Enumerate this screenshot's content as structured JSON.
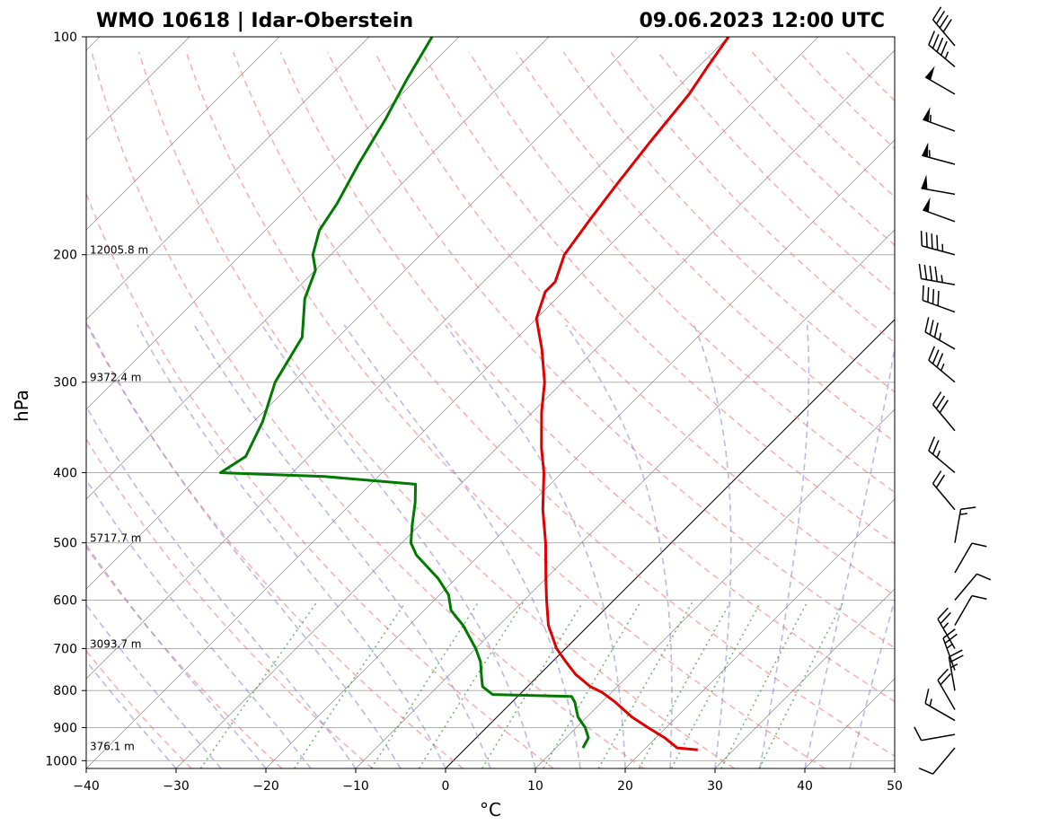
{
  "header": {
    "title_left": "WMO 10618 | Idar-Oberstein",
    "title_right": "09.06.2023 12:00 UTC"
  },
  "chart_data": {
    "type": "skew-t",
    "title": "WMO 10618 | Idar-Oberstein",
    "subtitle": "09.06.2023 12:00 UTC",
    "xlabel": "°C",
    "ylabel": "hPa",
    "xlim": [
      -40,
      50
    ],
    "ylim": [
      1025,
      100
    ],
    "y_scale": "log",
    "x_ticks": [
      -40,
      -30,
      -20,
      -10,
      0,
      10,
      20,
      30,
      40,
      50
    ],
    "y_ticks": [
      100,
      200,
      300,
      400,
      500,
      600,
      700,
      800,
      900,
      1000
    ],
    "grid": true,
    "height_labels": [
      {
        "p": 200,
        "text": "12005.8 m"
      },
      {
        "p": 300,
        "text": "9372.4 m"
      },
      {
        "p": 500,
        "text": "5717.7 m"
      },
      {
        "p": 700,
        "text": "3093.7 m"
      },
      {
        "p": 970,
        "text": "376.1 m"
      }
    ],
    "background_lines": [
      "isotherms (gray, solid)",
      "dry adiabats (red, dashed)",
      "moist adiabats (blue, dashed)",
      "mixing ratio lines (green, dotted)"
    ],
    "zero_isotherm_highlight": true,
    "series": [
      {
        "color": "#e00000",
        "points": [
          [
            966,
            26
          ],
          [
            960,
            23.5
          ],
          [
            930,
            21
          ],
          [
            900,
            18
          ],
          [
            870,
            15
          ],
          [
            830,
            11.5
          ],
          [
            805,
            9
          ],
          [
            790,
            7
          ],
          [
            760,
            4
          ],
          [
            730,
            1.5
          ],
          [
            700,
            -1
          ],
          [
            650,
            -4.5
          ],
          [
            600,
            -7.5
          ],
          [
            560,
            -10
          ],
          [
            500,
            -14
          ],
          [
            450,
            -18
          ],
          [
            400,
            -22
          ],
          [
            370,
            -25
          ],
          [
            330,
            -29
          ],
          [
            300,
            -32
          ],
          [
            270,
            -36
          ],
          [
            245,
            -40
          ],
          [
            225,
            -42
          ],
          [
            218,
            -42
          ],
          [
            200,
            -44
          ],
          [
            180,
            -45
          ],
          [
            160,
            -46
          ],
          [
            140,
            -47
          ],
          [
            120,
            -48
          ],
          [
            110,
            -49
          ],
          [
            100,
            -50
          ]
        ]
      },
      {
        "color": "#007a00",
        "points": [
          [
            960,
            13
          ],
          [
            930,
            12.5
          ],
          [
            900,
            11
          ],
          [
            870,
            9
          ],
          [
            830,
            7
          ],
          [
            815,
            6
          ],
          [
            810,
            -3
          ],
          [
            790,
            -5
          ],
          [
            770,
            -6
          ],
          [
            730,
            -8
          ],
          [
            700,
            -10
          ],
          [
            650,
            -14
          ],
          [
            620,
            -17
          ],
          [
            590,
            -19
          ],
          [
            560,
            -22
          ],
          [
            520,
            -27
          ],
          [
            500,
            -29
          ],
          [
            470,
            -31
          ],
          [
            440,
            -33
          ],
          [
            415,
            -35
          ],
          [
            405,
            -46
          ],
          [
            400,
            -58
          ],
          [
            380,
            -57
          ],
          [
            340,
            -59
          ],
          [
            300,
            -62
          ],
          [
            260,
            -64
          ],
          [
            230,
            -68
          ],
          [
            210,
            -70
          ],
          [
            200,
            -72
          ],
          [
            185,
            -74
          ],
          [
            170,
            -75
          ],
          [
            150,
            -77
          ],
          [
            130,
            -79
          ],
          [
            115,
            -81
          ],
          [
            100,
            -83
          ]
        ]
      }
    ],
    "wind_barbs": [
      {
        "p": 960,
        "dir": 220,
        "kt": 10
      },
      {
        "p": 920,
        "dir": 260,
        "kt": 10
      },
      {
        "p": 880,
        "dir": 300,
        "kt": 15
      },
      {
        "p": 850,
        "dir": 330,
        "kt": 20
      },
      {
        "p": 800,
        "dir": 350,
        "kt": 25
      },
      {
        "p": 750,
        "dir": 340,
        "kt": 25
      },
      {
        "p": 700,
        "dir": 330,
        "kt": 25
      },
      {
        "p": 650,
        "dir": 30,
        "kt": 10
      },
      {
        "p": 600,
        "dir": 40,
        "kt": 10
      },
      {
        "p": 550,
        "dir": 30,
        "kt": 10
      },
      {
        "p": 500,
        "dir": 10,
        "kt": 15
      },
      {
        "p": 450,
        "dir": 320,
        "kt": 20
      },
      {
        "p": 400,
        "dir": 310,
        "kt": 25
      },
      {
        "p": 350,
        "dir": 320,
        "kt": 30
      },
      {
        "p": 300,
        "dir": 310,
        "kt": 35
      },
      {
        "p": 270,
        "dir": 300,
        "kt": 35
      },
      {
        "p": 240,
        "dir": 290,
        "kt": 40
      },
      {
        "p": 220,
        "dir": 280,
        "kt": 45
      },
      {
        "p": 200,
        "dir": 285,
        "kt": 45
      },
      {
        "p": 180,
        "dir": 290,
        "kt": 50
      },
      {
        "p": 165,
        "dir": 280,
        "kt": 50
      },
      {
        "p": 150,
        "dir": 285,
        "kt": 55
      },
      {
        "p": 135,
        "dir": 290,
        "kt": 55
      },
      {
        "p": 120,
        "dir": 300,
        "kt": 50
      },
      {
        "p": 110,
        "dir": 310,
        "kt": 45
      },
      {
        "p": 100,
        "dir": 320,
        "kt": 40
      }
    ]
  }
}
